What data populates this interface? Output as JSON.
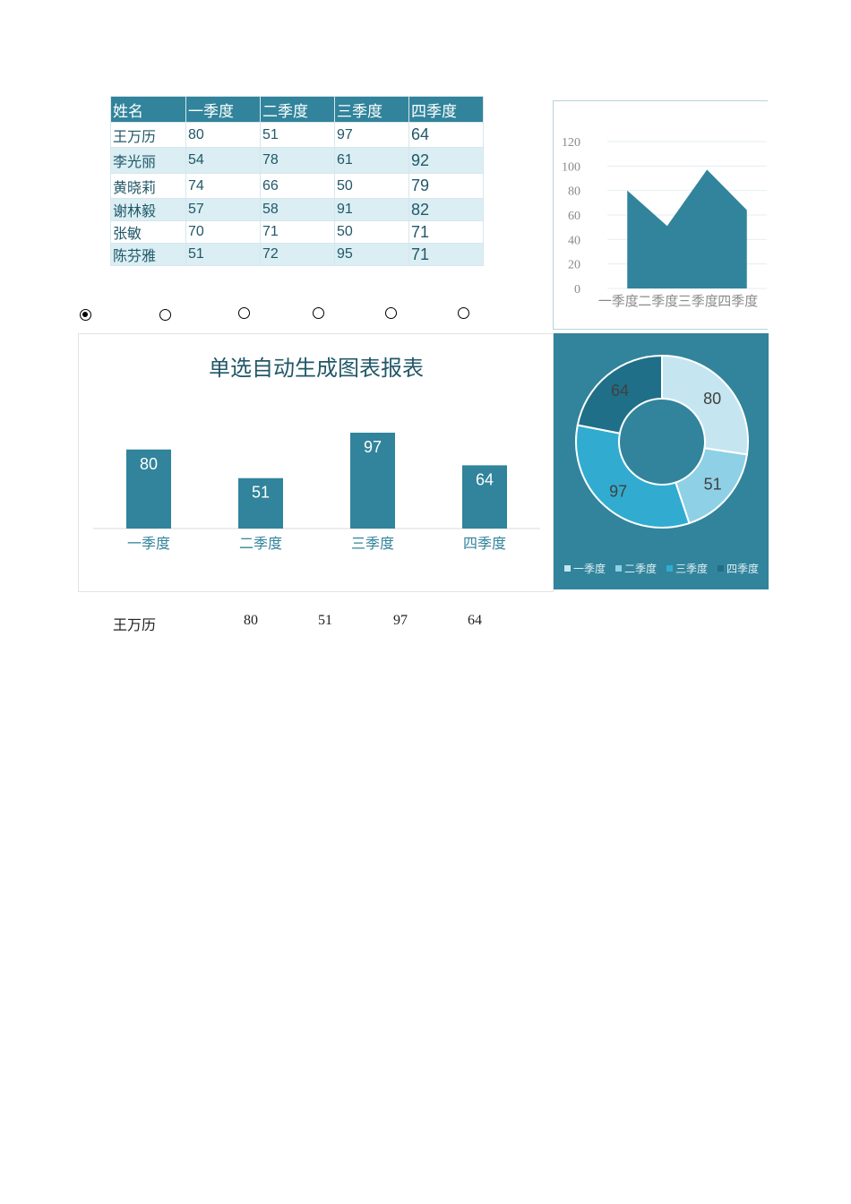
{
  "table": {
    "headers": [
      "姓名",
      "一季度",
      "二季度",
      "三季度",
      "四季度"
    ],
    "rows": [
      [
        "王万历",
        "80",
        "51",
        "97",
        "64"
      ],
      [
        "李光丽",
        "54",
        "78",
        "61",
        "92"
      ],
      [
        "黄晓莉",
        "74",
        "66",
        "50",
        "79"
      ],
      [
        "谢林毅",
        "57",
        "58",
        "91",
        "82"
      ],
      [
        "张敏",
        "70",
        "71",
        "50",
        "71"
      ],
      [
        "陈芬雅",
        "51",
        "72",
        "95",
        "71"
      ]
    ]
  },
  "radios": {
    "count": 6,
    "selected_index": 0
  },
  "selected": {
    "name": "王万历",
    "values": [
      "80",
      "51",
      "97",
      "64"
    ]
  },
  "colors": {
    "primary": "#31849b",
    "header_text": "#ffffff",
    "row_alt": "#daeef3",
    "donut_slices": [
      "#c5e6f0",
      "#8ed0e6",
      "#31acd0",
      "#1f6f88"
    ]
  },
  "chart_data": [
    {
      "type": "area",
      "categories": [
        "一季度",
        "二季度",
        "三季度",
        "四季度"
      ],
      "values": [
        80,
        51,
        97,
        64
      ],
      "ylim": [
        0,
        120
      ],
      "yticks": [
        "0",
        "20",
        "40",
        "60",
        "80",
        "100",
        "120"
      ],
      "grid": true
    },
    {
      "type": "bar",
      "title": "单选自动生成图表报表",
      "categories": [
        "一季度",
        "二季度",
        "三季度",
        "四季度"
      ],
      "values": [
        80,
        51,
        97,
        64
      ],
      "data_labels": true,
      "grid": false
    },
    {
      "type": "pie",
      "donut": true,
      "categories": [
        "一季度",
        "二季度",
        "三季度",
        "四季度"
      ],
      "values": [
        80,
        51,
        97,
        64
      ],
      "legend": "bottom"
    }
  ]
}
